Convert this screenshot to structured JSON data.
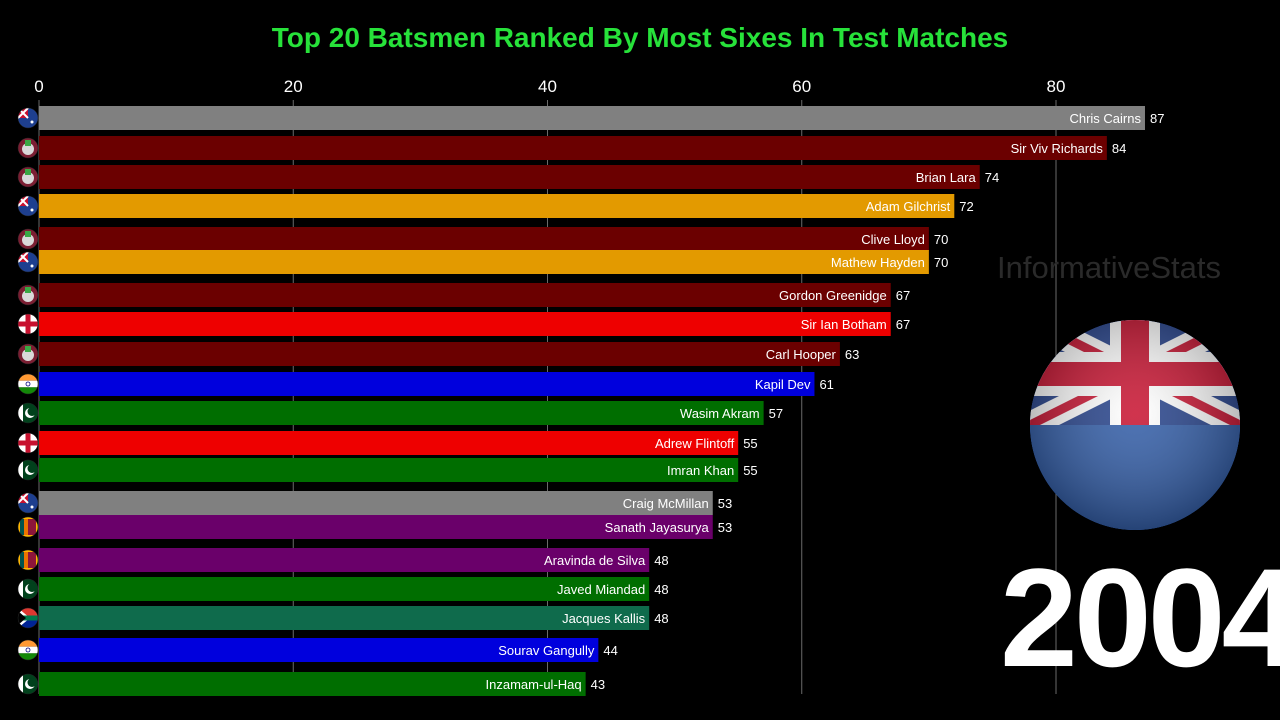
{
  "page": {
    "watermark": "InformativeStats",
    "year": "2004"
  },
  "chart_data": {
    "type": "bar",
    "orientation": "horizontal",
    "title": "Top 20 Batsmen Ranked By Most Sixes In Test Matches",
    "xlim": [
      0,
      90
    ],
    "xticks": [
      0,
      20,
      40,
      60,
      80
    ],
    "grid": true,
    "bars": [
      {
        "name": "Chris Cairns",
        "value": 87,
        "color": "#808080",
        "flag": "new-zealand-flag-icon"
      },
      {
        "name": "Sir Viv Richards",
        "value": 84,
        "color": "#6b0000",
        "flag": "west-indies-flag-icon"
      },
      {
        "name": "Brian Lara",
        "value": 74,
        "color": "#6b0000",
        "flag": "west-indies-flag-icon"
      },
      {
        "name": "Adam Gilchrist",
        "value": 72,
        "color": "#e39a00",
        "flag": "australia-flag-icon"
      },
      {
        "name": "Clive Lloyd",
        "value": 70,
        "color": "#6b0000",
        "flag": "west-indies-flag-icon"
      },
      {
        "name": "Mathew Hayden",
        "value": 70,
        "color": "#e39a00",
        "flag": "australia-flag-icon"
      },
      {
        "name": "Gordon Greenidge",
        "value": 67,
        "color": "#6b0000",
        "flag": "west-indies-flag-icon"
      },
      {
        "name": "Sir Ian Botham",
        "value": 67,
        "color": "#ee0000",
        "flag": "england-flag-icon"
      },
      {
        "name": "Carl Hooper",
        "value": 63,
        "color": "#6b0000",
        "flag": "west-indies-flag-icon"
      },
      {
        "name": "Kapil Dev",
        "value": 61,
        "color": "#0000dd",
        "flag": "india-flag-icon"
      },
      {
        "name": "Wasim Akram",
        "value": 57,
        "color": "#006e00",
        "flag": "pakistan-flag-icon"
      },
      {
        "name": "Adrew Flintoff",
        "value": 55,
        "color": "#ee0000",
        "flag": "england-flag-icon"
      },
      {
        "name": "Imran Khan",
        "value": 55,
        "color": "#006e00",
        "flag": "pakistan-flag-icon"
      },
      {
        "name": "Craig McMillan",
        "value": 53,
        "color": "#808080",
        "flag": "new-zealand-flag-icon"
      },
      {
        "name": "Sanath Jayasurya",
        "value": 53,
        "color": "#6a006a",
        "flag": "sri-lanka-flag-icon"
      },
      {
        "name": "Aravinda de Silva",
        "value": 48,
        "color": "#6a006a",
        "flag": "sri-lanka-flag-icon"
      },
      {
        "name": "Javed Miandad",
        "value": 48,
        "color": "#006e00",
        "flag": "pakistan-flag-icon"
      },
      {
        "name": "Jacques Kallis",
        "value": 48,
        "color": "#0f6b4c",
        "flag": "south-africa-flag-icon"
      },
      {
        "name": "Sourav Gangully",
        "value": 44,
        "color": "#0000dd",
        "flag": "india-flag-icon"
      },
      {
        "name": "Inzamam-ul-Haq",
        "value": 43,
        "color": "#006e00",
        "flag": "pakistan-flag-icon"
      }
    ]
  }
}
